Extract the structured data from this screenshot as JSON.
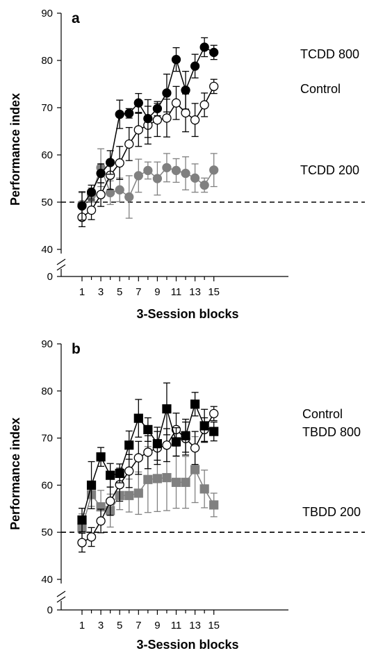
{
  "chart_data": [
    {
      "type": "line",
      "panel_label": "a",
      "xlabel": "3-Session blocks",
      "ylabel": "Performance index",
      "x": [
        1,
        2,
        3,
        4,
        5,
        6,
        7,
        8,
        9,
        10,
        11,
        12,
        13,
        14,
        15
      ],
      "x_tick_labels": [
        "1",
        "3",
        "5",
        "7",
        "9",
        "11",
        "13",
        "15"
      ],
      "x_tick_values": [
        1,
        3,
        5,
        7,
        9,
        11,
        13,
        15
      ],
      "ylim": [
        40,
        90
      ],
      "y_ticks": [
        40,
        50,
        60,
        70,
        80,
        90
      ],
      "y_axis_break": true,
      "y_break_tick": 0,
      "reference_line": 50,
      "series": [
        {
          "name": "TCDD 200",
          "marker": "circle",
          "color": "#808080",
          "fill": "#808080",
          "values": [
            49.5,
            51.5,
            57.3,
            52.0,
            52.6,
            51.1,
            55.6,
            56.7,
            55.0,
            57.3,
            56.7,
            56.1,
            55.1,
            53.6,
            56.8
          ],
          "errors": [
            2.5,
            1.5,
            4.0,
            2.5,
            2.5,
            4.5,
            3.5,
            1.8,
            3.5,
            3.0,
            2.5,
            3.5,
            3.0,
            1.5,
            3.5
          ]
        },
        {
          "name": "Control",
          "marker": "circle",
          "color": "#000000",
          "fill": "#ffffff",
          "values": [
            46.8,
            48.3,
            51.6,
            55.7,
            58.3,
            62.3,
            65.3,
            66.3,
            67.4,
            67.8,
            71.0,
            68.9,
            67.4,
            70.6,
            74.5
          ],
          "errors": [
            2.0,
            2.0,
            2.5,
            3.0,
            3.5,
            3.5,
            3.5,
            4.0,
            3.5,
            4.0,
            3.5,
            4.0,
            3.5,
            2.5,
            1.5
          ]
        },
        {
          "name": "TCDD 800",
          "marker": "circle",
          "color": "#000000",
          "fill": "#000000",
          "values": [
            49.2,
            52.1,
            56.1,
            58.4,
            68.6,
            68.8,
            71.0,
            67.7,
            69.8,
            73.1,
            80.2,
            73.7,
            78.8,
            82.8,
            81.7
          ],
          "errors": [
            3.0,
            1.5,
            2.0,
            2.5,
            3.0,
            1.0,
            2.0,
            4.0,
            1.5,
            4.0,
            2.5,
            4.0,
            2.5,
            2.0,
            1.5
          ]
        }
      ]
    },
    {
      "type": "line",
      "panel_label": "b",
      "xlabel": "3-Session blocks",
      "ylabel": "Performance index",
      "x": [
        1,
        2,
        3,
        4,
        5,
        6,
        7,
        8,
        9,
        10,
        11,
        12,
        13,
        14,
        15
      ],
      "x_tick_labels": [
        "1",
        "3",
        "5",
        "7",
        "9",
        "11",
        "13",
        "15"
      ],
      "x_tick_values": [
        1,
        3,
        5,
        7,
        9,
        11,
        13,
        15
      ],
      "ylim": [
        40,
        90
      ],
      "y_ticks": [
        40,
        50,
        60,
        70,
        80,
        90
      ],
      "y_axis_break": true,
      "y_break_tick": 0,
      "reference_line": 50,
      "series": [
        {
          "name": "TBDD 200",
          "marker": "square",
          "color": "#808080",
          "fill": "#808080",
          "values": [
            50.9,
            58.0,
            55.4,
            54.6,
            57.8,
            57.8,
            58.3,
            61.2,
            61.4,
            61.6,
            60.6,
            60.6,
            63.3,
            59.2,
            55.8
          ],
          "errors": [
            3.0,
            2.5,
            3.5,
            3.5,
            3.0,
            3.5,
            4.5,
            7.0,
            7.0,
            7.0,
            5.5,
            5.5,
            7.0,
            4.0,
            2.5
          ]
        },
        {
          "name": "Control",
          "marker": "circle",
          "color": "#000000",
          "fill": "#ffffff",
          "values": [
            47.8,
            49.0,
            52.4,
            56.6,
            60.1,
            63.0,
            65.8,
            67.0,
            67.9,
            68.5,
            71.8,
            69.9,
            67.9,
            71.8,
            75.2
          ],
          "errors": [
            2.0,
            2.0,
            2.5,
            3.0,
            3.5,
            3.5,
            3.5,
            3.5,
            3.5,
            3.5,
            3.5,
            3.5,
            3.5,
            2.5,
            1.5
          ]
        },
        {
          "name": "TBDD 800",
          "marker": "square",
          "color": "#000000",
          "fill": "#000000",
          "values": [
            52.6,
            60.0,
            66.0,
            62.1,
            62.5,
            68.5,
            74.2,
            71.8,
            68.8,
            76.2,
            69.2,
            70.5,
            77.2,
            72.6,
            71.4
          ],
          "errors": [
            2.5,
            5.0,
            2.0,
            2.5,
            2.0,
            3.0,
            4.0,
            2.5,
            3.5,
            5.5,
            3.0,
            3.5,
            2.5,
            3.5,
            2.0
          ]
        }
      ]
    }
  ]
}
